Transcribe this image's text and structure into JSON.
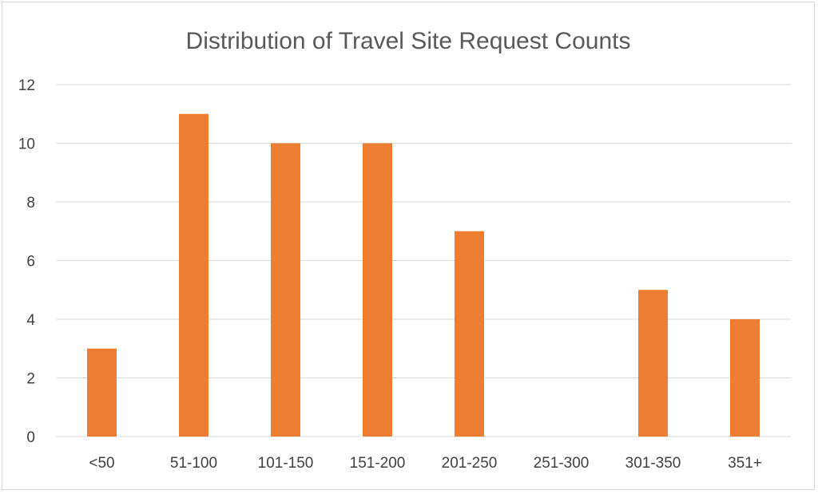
{
  "chart_data": {
    "type": "bar",
    "title": "Distribution of Travel Site Request Counts",
    "xlabel": "",
    "ylabel": "",
    "categories": [
      "<50",
      "51-100",
      "101-150",
      "151-200",
      "201-250",
      "251-300",
      "301-350",
      "351+"
    ],
    "values": [
      3,
      11,
      10,
      10,
      7,
      0,
      5,
      4
    ],
    "ylim": [
      0,
      12
    ],
    "yticks": [
      0,
      2,
      4,
      6,
      8,
      10,
      12
    ],
    "grid": true,
    "legend": "none",
    "colors": {
      "bar": "#ED7D31",
      "grid": "#D9D9D9",
      "title": "#595959",
      "ticks": "#404040"
    }
  }
}
